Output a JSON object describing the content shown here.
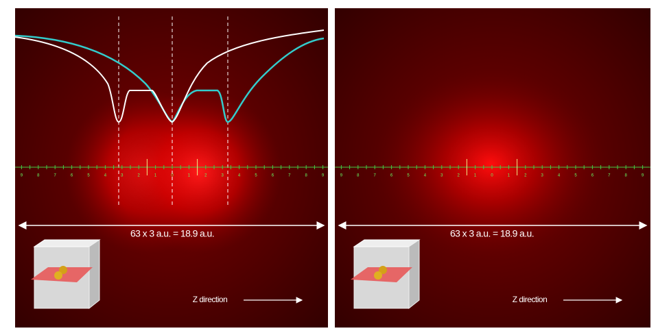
{
  "panels": [
    {
      "ruler_labels": [
        9,
        8,
        7,
        6,
        5,
        4,
        3,
        2,
        1,
        0,
        1,
        2,
        3,
        4,
        5,
        6,
        7,
        8,
        9
      ],
      "scale_label": "63 x 3 a.u. = 18.9 a.u.",
      "direction_label": "Z direction"
    },
    {
      "ruler_labels": [
        9,
        8,
        7,
        6,
        5,
        4,
        3,
        2,
        1,
        0,
        1,
        2,
        3,
        4,
        5,
        6,
        7,
        8,
        9
      ],
      "scale_label": "63 x 3 a.u. = 18.9 a.u.",
      "direction_label": "Z direction"
    }
  ]
}
